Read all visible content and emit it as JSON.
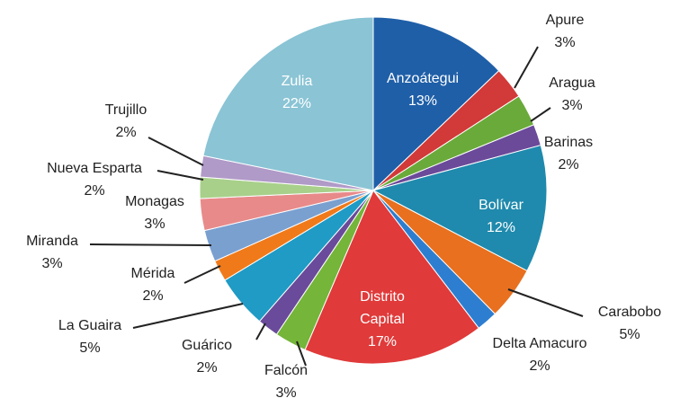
{
  "chart_data": {
    "type": "pie",
    "categories": [
      "Anzoátegui",
      "Apure",
      "Aragua",
      "Barinas",
      "Bolívar",
      "Carabobo",
      "Delta Amacuro",
      "Distrito Capital",
      "Falcón",
      "Guárico",
      "La Guaira",
      "Mérida",
      "Miranda",
      "Monagas",
      "Nueva Esparta",
      "Trujillo",
      "Zulia"
    ],
    "values": [
      13,
      3,
      3,
      2,
      12,
      5,
      2,
      17,
      3,
      2,
      5,
      2,
      3,
      3,
      2,
      2,
      22
    ],
    "value_labels": [
      "13%",
      "3%",
      "3%",
      "2%",
      "12%",
      "5%",
      "2%",
      "17%",
      "3%",
      "2%",
      "5%",
      "2%",
      "3%",
      "3%",
      "2%",
      "2%",
      "22%"
    ],
    "colors": [
      "#1f5fa8",
      "#d13a38",
      "#6aaa3a",
      "#6b4a9a",
      "#1f8aad",
      "#e8701f",
      "#2d7ed0",
      "#e03a3a",
      "#74b53a",
      "#6a4a9a",
      "#1f9bc5",
      "#f07a1a",
      "#7aa0d0",
      "#e88a8a",
      "#a8d08a",
      "#b09ac8",
      "#8ac4d5"
    ]
  }
}
